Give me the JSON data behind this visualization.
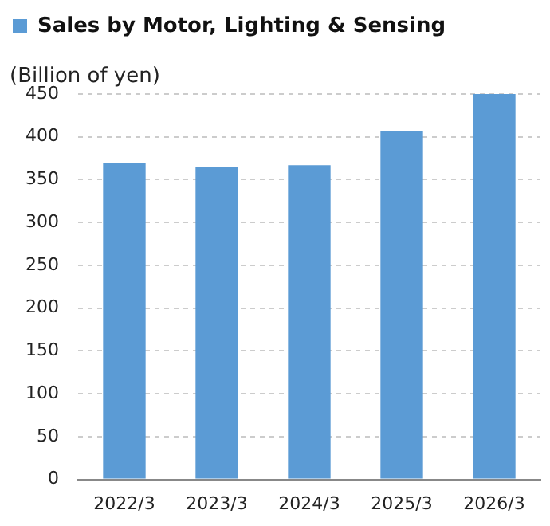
{
  "chart_data": {
    "type": "bar",
    "ylabel": "(Billion of yen)",
    "categories": [
      "2022/3",
      "2023/3",
      "2024/3",
      "2025/3",
      "2026/3"
    ],
    "series": [
      {
        "name": "Sales by Motor, Lighting & Sensing",
        "color": "#5b9bd5",
        "values": [
          369,
          365,
          367,
          407,
          450
        ]
      }
    ],
    "ylim": [
      0,
      450
    ],
    "yticks": [
      0,
      50,
      100,
      150,
      200,
      250,
      300,
      350,
      400,
      450
    ],
    "grid": "y",
    "legend": "top"
  }
}
